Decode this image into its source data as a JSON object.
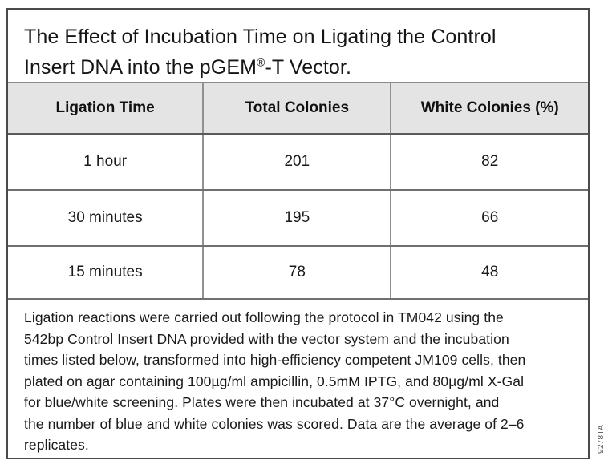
{
  "figure": {
    "title": {
      "line1": "The Effect of Incubation Time on Ligating the Control",
      "line2_pre": "Insert DNA into the pGEM",
      "registered_mark": "®",
      "line2_post": "-T Vector."
    },
    "table": {
      "columns": [
        "Ligation Time",
        "Total Colonies",
        "White Colonies (%)"
      ],
      "rows": [
        [
          "1 hour",
          "201",
          "82"
        ],
        [
          "30 minutes",
          "195",
          "66"
        ],
        [
          "15 minutes",
          "78",
          "48"
        ]
      ]
    },
    "footnote_lines": [
      "Ligation reactions were carried out following the protocol in TM042 using the",
      "542bp Control Insert DNA provided with the vector system and the incubation",
      "times listed below, transformed into high-efficiency competent JM109 cells, then",
      "plated on agar containing 100µg/ml ampicillin, 0.5mM IPTG, and 80µg/ml X-Gal",
      "for blue/white screening. Plates were then incubated at 37°C overnight, and",
      "the number of blue and white colonies was scored. Data are the average of 2–6",
      "replicates."
    ],
    "art_number": "9278TA",
    "colors": {
      "header_bg": "#e4e4e4",
      "outer_border": "#4a4a4a",
      "row_line": "#707070",
      "column_line": "#919191",
      "text": "#1a1a1a"
    }
  }
}
